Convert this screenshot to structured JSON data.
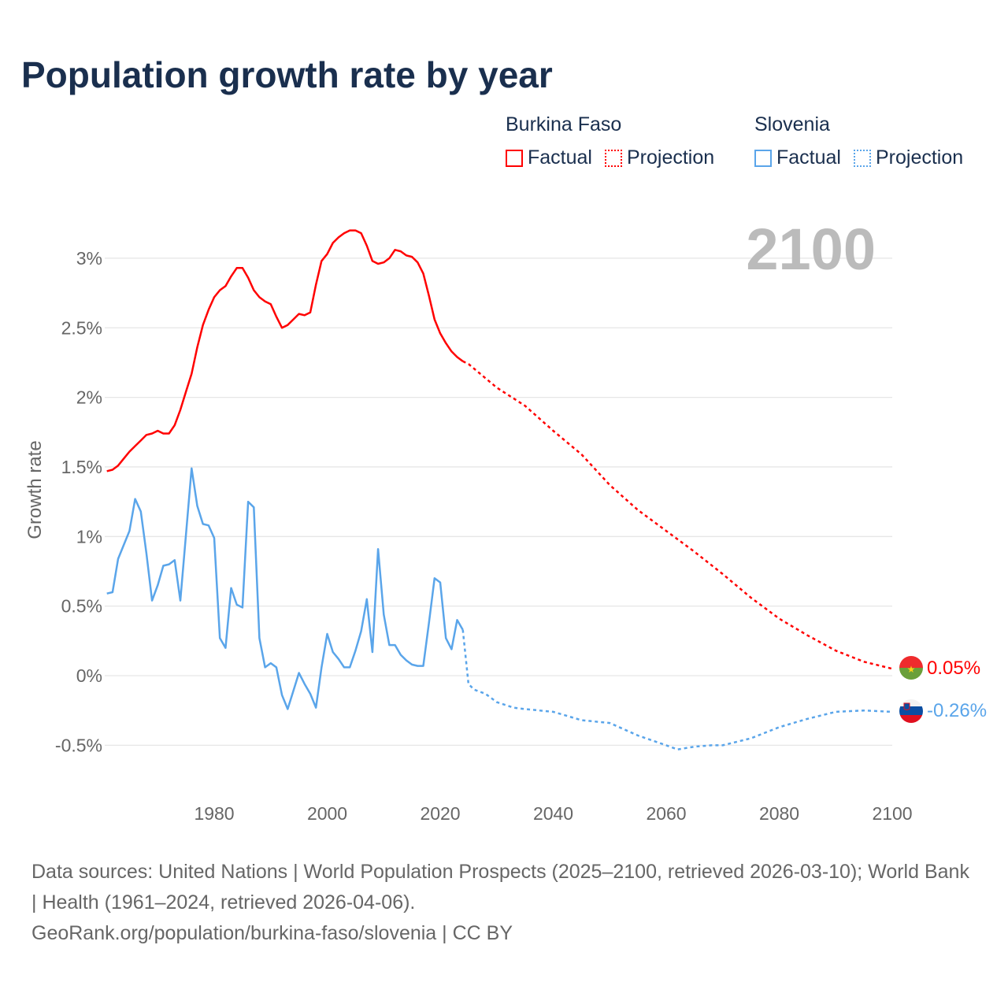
{
  "title": "Population growth rate by year",
  "legend": {
    "groups": [
      {
        "name": "Burkina Faso",
        "color": "#ff0000",
        "factual": "Factual",
        "projection": "Projection"
      },
      {
        "name": "Slovenia",
        "color": "#5aa5ea",
        "factual": "Factual",
        "projection": "Projection"
      }
    ]
  },
  "year_label": "2100",
  "footer": {
    "sources": "Data sources: United Nations | World Population Prospects (2025–2100, retrieved 2026-03-10); World Bank | Health (1961–2024, retrieved 2026-04-06).",
    "link": "GeoRank.org/population/burkina-faso/slovenia | CC BY"
  },
  "chart_data": {
    "type": "line",
    "title": "Population growth rate by year",
    "xlabel": "",
    "ylabel": "Growth rate",
    "xlim": [
      1961,
      2100
    ],
    "ylim": [
      -0.75,
      3.35
    ],
    "x_ticks": [
      1980,
      2000,
      2020,
      2040,
      2060,
      2080,
      2100
    ],
    "y_ticks": [
      -0.5,
      0,
      0.5,
      1,
      1.5,
      2,
      2.5,
      3
    ],
    "y_tick_labels": [
      "-0.5%",
      "0%",
      "0.5%",
      "1%",
      "1.5%",
      "2%",
      "2.5%",
      "3%"
    ],
    "grid": true,
    "legend_position": "top-right",
    "series": [
      {
        "name": "Burkina Faso",
        "color": "#ff0000",
        "end_label": "0.05%",
        "factual": {
          "x": [
            1961,
            1962,
            1963,
            1964,
            1965,
            1966,
            1967,
            1968,
            1969,
            1970,
            1971,
            1972,
            1973,
            1974,
            1975,
            1976,
            1977,
            1978,
            1979,
            1980,
            1981,
            1982,
            1983,
            1984,
            1985,
            1986,
            1987,
            1988,
            1989,
            1990,
            1991,
            1992,
            1993,
            1994,
            1995,
            1996,
            1997,
            1998,
            1999,
            2000,
            2001,
            2002,
            2003,
            2004,
            2005,
            2006,
            2007,
            2008,
            2009,
            2010,
            2011,
            2012,
            2013,
            2014,
            2015,
            2016,
            2017,
            2018,
            2019,
            2020,
            2021,
            2022,
            2023,
            2024
          ],
          "y": [
            1.47,
            1.48,
            1.51,
            1.56,
            1.61,
            1.65,
            1.69,
            1.73,
            1.74,
            1.76,
            1.74,
            1.74,
            1.8,
            1.91,
            2.04,
            2.17,
            2.36,
            2.52,
            2.63,
            2.72,
            2.77,
            2.8,
            2.87,
            2.93,
            2.93,
            2.86,
            2.77,
            2.72,
            2.69,
            2.67,
            2.58,
            2.5,
            2.52,
            2.56,
            2.6,
            2.59,
            2.61,
            2.81,
            2.98,
            3.03,
            3.11,
            3.15,
            3.18,
            3.2,
            3.2,
            3.18,
            3.09,
            2.98,
            2.96,
            2.97,
            3.0,
            3.06,
            3.05,
            3.02,
            3.01,
            2.97,
            2.89,
            2.73,
            2.56,
            2.46,
            2.39,
            2.33,
            2.29,
            2.26
          ]
        },
        "projection": {
          "x": [
            2024,
            2025,
            2030,
            2035,
            2040,
            2045,
            2050,
            2055,
            2060,
            2065,
            2070,
            2075,
            2080,
            2085,
            2090,
            2095,
            2100
          ],
          "y": [
            2.26,
            2.24,
            2.07,
            1.94,
            1.76,
            1.59,
            1.37,
            1.19,
            1.04,
            0.89,
            0.73,
            0.56,
            0.41,
            0.29,
            0.18,
            0.1,
            0.05
          ]
        }
      },
      {
        "name": "Slovenia",
        "color": "#5aa5ea",
        "end_label": "-0.26%",
        "factual": {
          "x": [
            1961,
            1962,
            1963,
            1964,
            1965,
            1966,
            1967,
            1968,
            1969,
            1970,
            1971,
            1972,
            1973,
            1974,
            1975,
            1976,
            1977,
            1978,
            1979,
            1980,
            1981,
            1982,
            1983,
            1984,
            1985,
            1986,
            1987,
            1988,
            1989,
            1990,
            1991,
            1992,
            1993,
            1994,
            1995,
            1996,
            1997,
            1998,
            1999,
            2000,
            2001,
            2002,
            2003,
            2004,
            2005,
            2006,
            2007,
            2008,
            2009,
            2010,
            2011,
            2012,
            2013,
            2014,
            2015,
            2016,
            2017,
            2018,
            2019,
            2020,
            2021,
            2022,
            2023,
            2024
          ],
          "y": [
            0.59,
            0.6,
            0.84,
            0.94,
            1.04,
            1.27,
            1.18,
            0.88,
            0.54,
            0.65,
            0.79,
            0.8,
            0.83,
            0.54,
            1.01,
            1.49,
            1.22,
            1.09,
            1.08,
            0.99,
            0.27,
            0.2,
            0.63,
            0.51,
            0.49,
            1.25,
            1.21,
            0.27,
            0.06,
            0.09,
            0.06,
            -0.14,
            -0.24,
            -0.11,
            0.02,
            -0.06,
            -0.13,
            -0.23,
            0.06,
            0.3,
            0.17,
            0.12,
            0.06,
            0.06,
            0.18,
            0.32,
            0.55,
            0.17,
            0.91,
            0.44,
            0.22,
            0.22,
            0.15,
            0.11,
            0.08,
            0.07,
            0.07,
            0.38,
            0.7,
            0.67,
            0.27,
            0.19,
            0.4,
            0.33
          ]
        },
        "projection": {
          "x": [
            2024,
            2025,
            2026,
            2028,
            2030,
            2033,
            2035,
            2040,
            2045,
            2050,
            2055,
            2060,
            2062,
            2065,
            2068,
            2070,
            2075,
            2080,
            2085,
            2090,
            2095,
            2100
          ],
          "y": [
            0.33,
            -0.06,
            -0.1,
            -0.13,
            -0.19,
            -0.23,
            -0.24,
            -0.26,
            -0.32,
            -0.34,
            -0.43,
            -0.5,
            -0.53,
            -0.51,
            -0.5,
            -0.5,
            -0.45,
            -0.37,
            -0.31,
            -0.26,
            -0.25,
            -0.26
          ]
        }
      }
    ]
  }
}
